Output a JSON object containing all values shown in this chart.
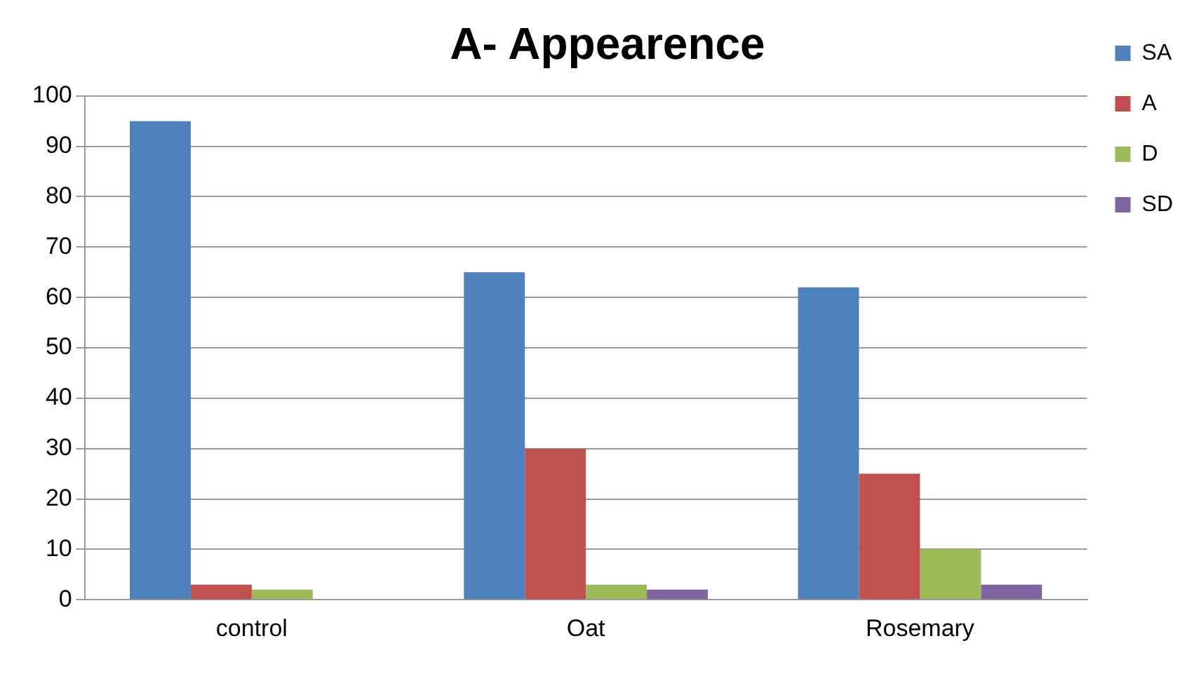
{
  "chart_data": {
    "type": "bar",
    "title": "A- Appearence",
    "categories": [
      "control",
      "Oat",
      "Rosemary"
    ],
    "series": [
      {
        "name": "SA",
        "color": "#4f81bd",
        "values": [
          95,
          65,
          62
        ]
      },
      {
        "name": "A",
        "color": "#c0504d",
        "values": [
          3,
          30,
          25
        ]
      },
      {
        "name": "D",
        "color": "#9bbb59",
        "values": [
          2,
          3,
          10
        ]
      },
      {
        "name": "SD",
        "color": "#8064a2",
        "values": [
          0,
          2,
          3
        ]
      }
    ],
    "ylim": [
      0,
      100
    ],
    "yticks": [
      0,
      10,
      20,
      30,
      40,
      50,
      60,
      70,
      80,
      90,
      100
    ],
    "grid": "y",
    "legend": "right"
  }
}
